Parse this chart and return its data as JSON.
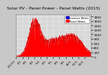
{
  "title": "Solar PV - Panel Power - Panel Watts (2013)",
  "bg_color": "#d0d0d0",
  "plot_bg_color": "#d8d8d8",
  "grid_color": "#ffffff",
  "fill_color": "#ff0000",
  "line_color": "#dd0000",
  "legend_colors": [
    "#0000cc",
    "#ff0000"
  ],
  "legend_labels": [
    "Inverter Watts",
    "Panel Watts"
  ],
  "ylim": [
    0,
    1900
  ],
  "yticks": [
    0,
    200,
    400,
    600,
    800,
    1000,
    1200,
    1400,
    1600,
    1800
  ],
  "num_points": 2000,
  "peak_value": 1750,
  "title_fontsize": 4.5,
  "tick_fontsize": 3.2,
  "background_outer": "#c8c8c8"
}
